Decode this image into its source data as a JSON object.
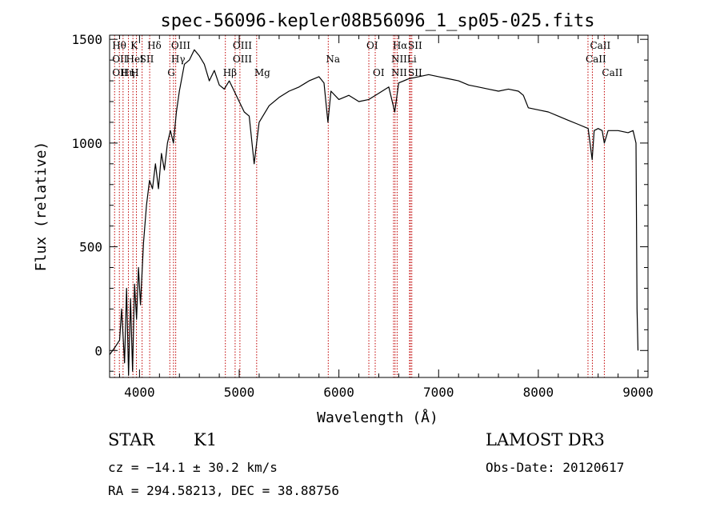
{
  "chart_data": {
    "type": "line",
    "title": "spec-56096-kepler08B56096_1_sp05-025.fits",
    "xlabel": "Wavelength (Å)",
    "ylabel": "Flux (relative)",
    "xlim": [
      3700,
      9100
    ],
    "ylim": [
      -130,
      1520
    ],
    "x_ticks": [
      4000,
      5000,
      6000,
      7000,
      8000,
      9000
    ],
    "y_ticks": [
      0,
      500,
      1000,
      1500
    ],
    "grid": false,
    "series": [
      {
        "x": [
          3700,
          3760,
          3800,
          3820,
          3850,
          3870,
          3890,
          3910,
          3930,
          3950,
          3970,
          3990,
          4010,
          4040,
          4070,
          4100,
          4130,
          4160,
          4190,
          4220,
          4250,
          4280,
          4310,
          4340,
          4370,
          4400,
          4450,
          4500,
          4550,
          4600,
          4650,
          4700,
          4750,
          4800,
          4850,
          4900,
          4950,
          5000,
          5050,
          5100,
          5150,
          5200,
          5300,
          5400,
          5500,
          5600,
          5700,
          5800,
          5850,
          5890,
          5920,
          6000,
          6100,
          6200,
          6300,
          6400,
          6500,
          6560,
          6600,
          6700,
          6800,
          6900,
          7000,
          7100,
          7200,
          7300,
          7400,
          7500,
          7600,
          7700,
          7800,
          7850,
          7900,
          8000,
          8100,
          8200,
          8300,
          8400,
          8500,
          8540,
          8560,
          8600,
          8640,
          8662,
          8700,
          8800,
          8900,
          8950,
          8980,
          8990,
          9000
        ],
        "y": [
          -20,
          20,
          50,
          200,
          -60,
          300,
          -120,
          250,
          -100,
          320,
          150,
          400,
          220,
          520,
          700,
          820,
          780,
          900,
          780,
          950,
          870,
          1000,
          1060,
          1000,
          1150,
          1250,
          1380,
          1400,
          1450,
          1420,
          1380,
          1300,
          1350,
          1280,
          1260,
          1300,
          1250,
          1200,
          1150,
          1130,
          900,
          1100,
          1180,
          1220,
          1250,
          1270,
          1300,
          1320,
          1290,
          1100,
          1250,
          1210,
          1230,
          1200,
          1210,
          1240,
          1270,
          1150,
          1290,
          1310,
          1320,
          1330,
          1320,
          1310,
          1300,
          1280,
          1270,
          1260,
          1250,
          1260,
          1250,
          1230,
          1170,
          1160,
          1150,
          1130,
          1110,
          1090,
          1070,
          920,
          1060,
          1070,
          1060,
          1000,
          1060,
          1060,
          1050,
          1060,
          1000,
          200,
          0
        ]
      }
    ],
    "lines": [
      {
        "x": 3750,
        "labels": [
          "Hθ",
          "OII",
          "OII"
        ]
      },
      {
        "x": 3798,
        "labels": []
      },
      {
        "x": 3835,
        "labels": [
          "",
          "",
          "Hη"
        ]
      },
      {
        "x": 3889,
        "labels": [
          "",
          "HeI",
          ""
        ]
      },
      {
        "x": 3934,
        "labels": [
          "K",
          "",
          "H"
        ]
      },
      {
        "x": 3969,
        "labels": []
      },
      {
        "x": 4026,
        "labels": [
          "",
          "SII",
          ""
        ]
      },
      {
        "x": 4102,
        "labels": [
          "Hδ",
          "",
          ""
        ]
      },
      {
        "x": 4304,
        "labels": [
          "",
          "",
          "G"
        ]
      },
      {
        "x": 4341,
        "labels": [
          "OIII",
          "Hγ",
          ""
        ]
      },
      {
        "x": 4363,
        "labels": []
      },
      {
        "x": 4861,
        "labels": [
          "",
          "",
          "Hβ"
        ]
      },
      {
        "x": 4959,
        "labels": [
          "OIII",
          "OIII",
          ""
        ]
      },
      {
        "x": 5007,
        "labels": []
      },
      {
        "x": 5175,
        "labels": [
          "",
          "",
          "Mg"
        ]
      },
      {
        "x": 5893,
        "labels": [
          "",
          "Na",
          ""
        ]
      },
      {
        "x": 6300,
        "labels": [
          "OI",
          "",
          ""
        ]
      },
      {
        "x": 6364,
        "labels": [
          "",
          "",
          "OI"
        ]
      },
      {
        "x": 6548,
        "labels": [
          "",
          "NII",
          "NII"
        ]
      },
      {
        "x": 6563,
        "labels": [
          "Hα",
          "",
          ""
        ]
      },
      {
        "x": 6584,
        "labels": []
      },
      {
        "x": 6708,
        "labels": [
          "",
          "Li",
          ""
        ]
      },
      {
        "x": 6717,
        "labels": [
          "SII",
          "",
          "SII"
        ]
      },
      {
        "x": 6731,
        "labels": []
      },
      {
        "x": 8498,
        "labels": [
          "",
          "CaII",
          ""
        ]
      },
      {
        "x": 8542,
        "labels": [
          "CaII",
          "",
          ""
        ]
      },
      {
        "x": 8662,
        "labels": [
          "",
          "",
          "CaII"
        ]
      }
    ]
  },
  "info": {
    "class_label": "STAR",
    "subclass": "K1",
    "survey": "LAMOST DR3",
    "cz": "cz = −14.1 ± 30.2 km/s",
    "obs_date": "Obs-Date: 20120617",
    "radec": "RA = 294.58213, DEC =  38.88756"
  }
}
